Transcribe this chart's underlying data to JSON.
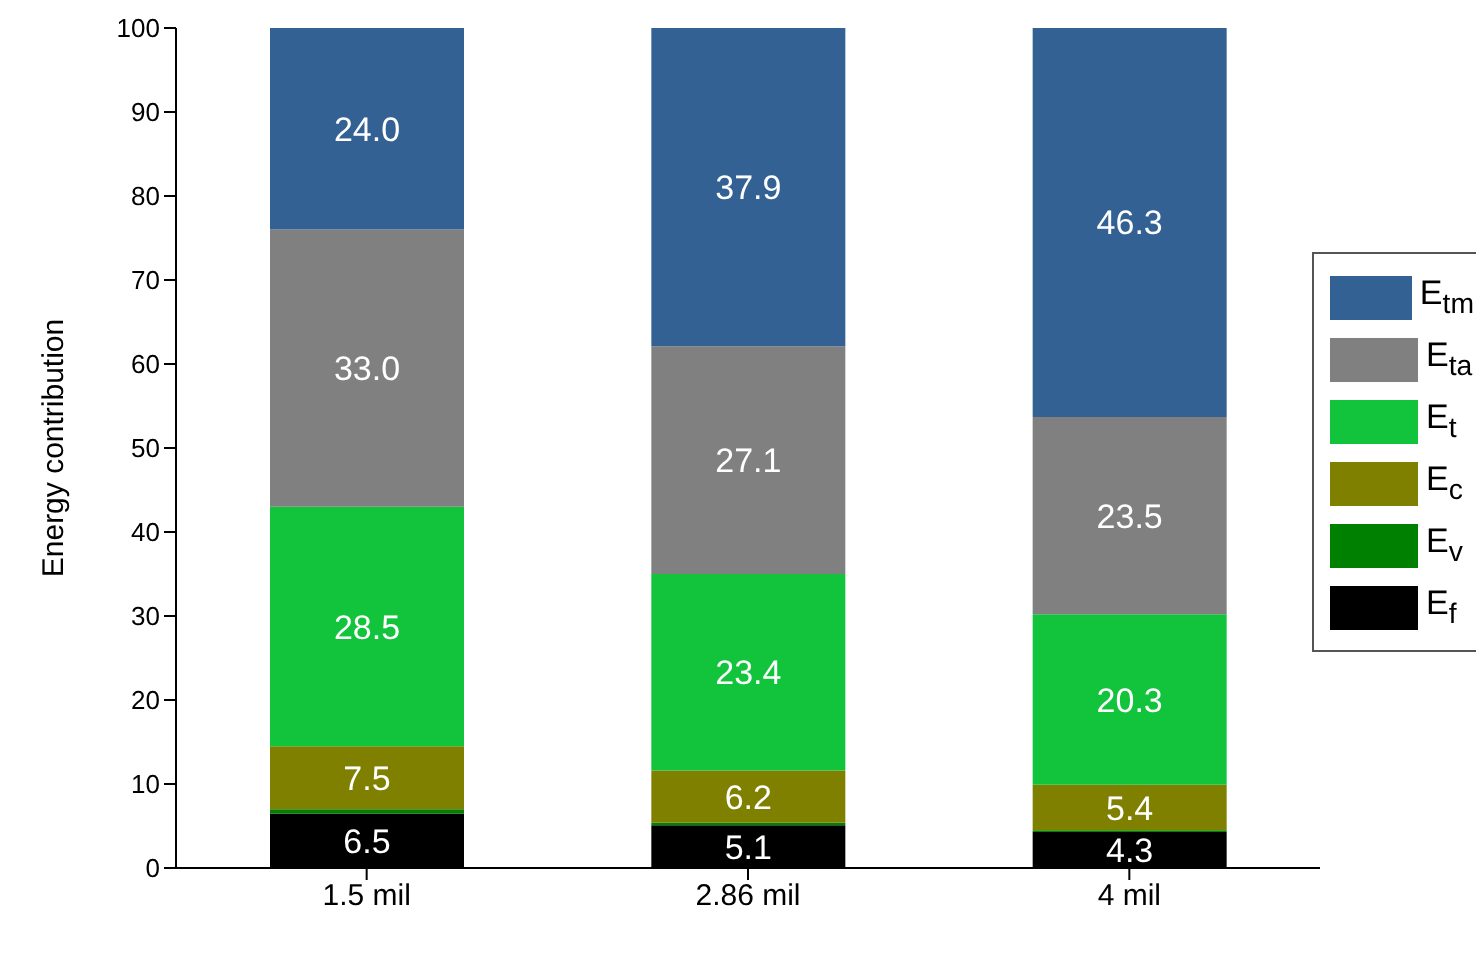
{
  "chart_data": {
    "type": "bar",
    "stacked": true,
    "ylabel": "Energy contribution",
    "categories": [
      "1.5 mil",
      "2.86 mil",
      "4 mil"
    ],
    "series": [
      {
        "name": "E$_{f}$",
        "color": "#000000",
        "values": [
          6.5,
          5.1,
          4.3
        ],
        "value_labels": [
          "6.5",
          "5.1",
          "4.3"
        ]
      },
      {
        "name": "E$_{v}$",
        "color": "#008000",
        "values": [
          0.5,
          0.3,
          0.2
        ],
        "value_labels": [
          null,
          null,
          null
        ]
      },
      {
        "name": "E$_{c}$",
        "color": "#808000",
        "values": [
          7.5,
          6.2,
          5.4
        ],
        "value_labels": [
          "7.5",
          "6.2",
          "5.4"
        ]
      },
      {
        "name": "E$_{t}$",
        "color": "#11c43c",
        "values": [
          28.5,
          23.4,
          20.3
        ],
        "value_labels": [
          "28.5",
          "23.4",
          "20.3"
        ]
      },
      {
        "name": "E$_{ta}$",
        "color": "#808080",
        "values": [
          33.0,
          27.1,
          23.5
        ],
        "value_labels": [
          "33.0",
          "27.1",
          "23.5"
        ]
      },
      {
        "name": "E$_{tm}$",
        "color": "#336194",
        "values": [
          24.0,
          37.9,
          46.3
        ],
        "value_labels": [
          "24.0",
          "37.9",
          "46.3"
        ]
      }
    ],
    "ylim": [
      0,
      100
    ],
    "yticks": [
      0,
      10,
      20,
      30,
      40,
      50,
      60,
      70,
      80,
      90,
      100
    ],
    "grid": false,
    "legend": "right"
  }
}
